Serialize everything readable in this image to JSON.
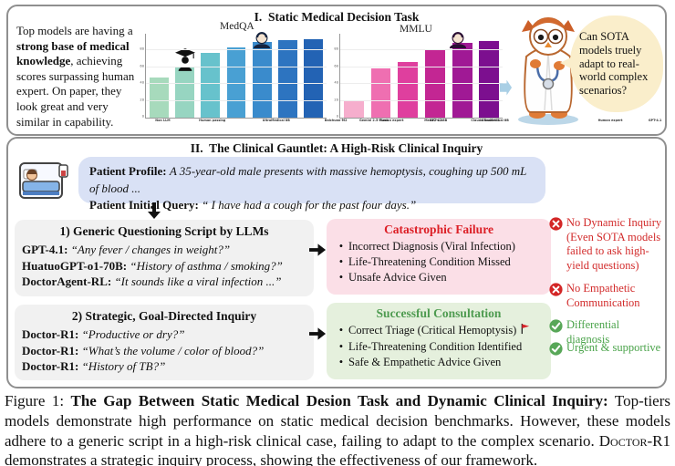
{
  "panel1": {
    "title": "I.  Static Medical Decision Task",
    "intro_text_1": "Top models are having a ",
    "intro_bold": "strong base of medical knowledge",
    "intro_text_2": ", achieving scores surpassing human expert. On paper, they look great and very similar in capability.",
    "speech_bubble": "Can SOTA models truely adapt to real-world complex scenarios?"
  },
  "chart_data": [
    {
      "type": "bar",
      "title": "MedQA",
      "categories": [
        "Non LLM",
        "Human passing",
        "UltraMedical 8B",
        "Baichuan-M2",
        "Human expert",
        "GPT-4.1",
        "Claude Sonnet 4"
      ],
      "values": [
        48,
        60,
        77,
        84,
        90,
        92,
        94
      ],
      "colors": [
        "#a7dabc",
        "#97d5c1",
        "#67c2cc",
        "#49a0d3",
        "#3a8bcc",
        "#2d74c0",
        "#2363b4"
      ],
      "xlabel": "",
      "ylabel": "",
      "ylim": [
        0,
        100
      ],
      "yticks": [
        0,
        20,
        40,
        60,
        80
      ],
      "grid": true,
      "annotations": [
        "graduate icon above Human passing bar",
        "doctor icon above Human expert bar"
      ]
    },
    {
      "type": "bar",
      "title": "MMLU",
      "categories": [
        "Gemini 2.5-Flash",
        "Med42-v2-8B",
        "UltraMedical 8B",
        "Baichuan-M2",
        "Human expert",
        "GPT-4.1"
      ],
      "values": [
        20,
        59,
        66,
        82,
        89,
        91
      ],
      "colors": [
        "#f6aecd",
        "#ef6fb1",
        "#df3f9e",
        "#c32693",
        "#a01995",
        "#7c0f8f"
      ],
      "xlabel": "",
      "ylabel": "",
      "ylim": [
        0,
        100
      ],
      "yticks": [
        0,
        20,
        40,
        60,
        80
      ],
      "grid": true,
      "annotations": [
        "doctor icon above Human expert bar"
      ]
    }
  ],
  "panel2": {
    "title": "II.  The Clinical Gauntlet: A High-Risk Clinical Inquiry",
    "patient_profile_label": "Patient Profile: ",
    "patient_profile_text": "A 35-year-old male presents with massive hemoptysis, coughing up 500 mL of blood ...",
    "patient_query_label": "Patient Initial Query: ",
    "patient_query_text": "“ I have had a cough for the past four days.”",
    "box1": {
      "title": "1) Generic Questioning Script by LLMs",
      "lines": [
        {
          "speaker": "GPT-4.1: ",
          "quote": "“Any fever /  changes in weight?”"
        },
        {
          "speaker": "HuatuoGPT-o1-70B: ",
          "quote": "“History of asthma / smoking?”"
        },
        {
          "speaker": "DoctorAgent-RL: ",
          "quote": "“It sounds like a viral infection ...”"
        }
      ]
    },
    "box2": {
      "title": "2) Strategic, Goal-Directed Inquiry",
      "lines": [
        {
          "speaker": "Doctor-R1: ",
          "quote": "“Productive or dry?”"
        },
        {
          "speaker": "Doctor-R1: ",
          "quote": "“What’s the volume / color of blood?”"
        },
        {
          "speaker": "Doctor-R1: ",
          "quote": "“History of TB?”"
        }
      ]
    },
    "failure_box": {
      "title": "Catastrophic Failure",
      "bullets": [
        "Incorrect Diagnosis (Viral Infection)",
        "Life-Threatening Condition Missed",
        "Unsafe Advice Given"
      ]
    },
    "success_box": {
      "title": "Successful Consultation",
      "bullets": [
        "Correct Triage (Critical Hemoptysis)",
        "Life-Threatening Condition Identified",
        "Safe & Empathetic Advice Given"
      ]
    },
    "annotations": {
      "neg1": "No Dynamic Inquiry (Even SOTA models failed to ask high-yield questions)",
      "neg2": "No Empathetic Communication",
      "pos1": "Differential diagnosis",
      "pos2": "Urgent & supportive"
    }
  },
  "caption": {
    "prefix": "Figure 1: ",
    "bold": "The Gap Between Static Medical Desion Task and Dynamic Clinical Inquiry:",
    "body1": " Top-tiers models demonstrate high performance on static medical decision benchmarks. However, these models adhere to a generic script in a high-risk clinical case, failing to adapt to the complex scenario. ",
    "smallcaps": "Doctor-R1",
    "body2": " demonstrates a strategic inquiry process, showing the effectiveness of our framework."
  },
  "colors": {
    "panel_border": "#8f8f8f",
    "patient_box_bg": "#d9e1f5",
    "script_box_bg": "#f1f1f1",
    "failure_bg": "#fbdfe7",
    "failure_title": "#dc1f26",
    "success_bg": "#e5f0dd",
    "success_title": "#4e9b50",
    "annotation_red": "#d22b2b",
    "annotation_green": "#4aa34a",
    "speech_bubble_bg": "#faeecb"
  }
}
